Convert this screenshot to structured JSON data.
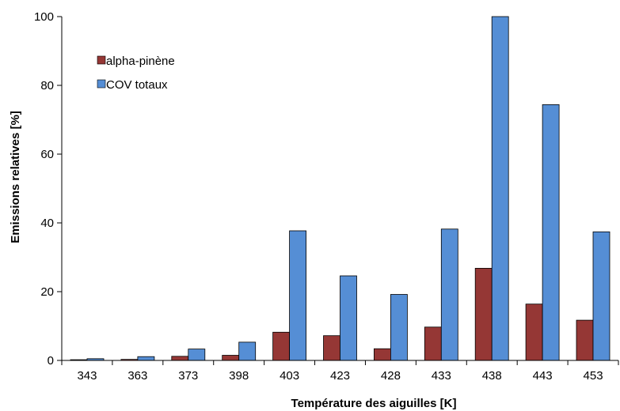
{
  "chart_data": {
    "type": "bar",
    "title": "",
    "xlabel": "Température des aiguilles [K]",
    "ylabel": "Emissions relatives [%]",
    "ylim": [
      0,
      100
    ],
    "yticks": [
      0,
      20,
      40,
      60,
      80,
      100
    ],
    "categories": [
      "343",
      "363",
      "373",
      "398",
      "403",
      "423",
      "428",
      "433",
      "438",
      "443",
      "453"
    ],
    "series": [
      {
        "name": "alpha-pinène",
        "color": "#953735",
        "values": [
          0.2,
          0.3,
          1.2,
          1.5,
          8.2,
          7.2,
          3.4,
          9.7,
          26.8,
          16.4,
          11.7
        ]
      },
      {
        "name": "COV totaux",
        "color": "#558ED5",
        "values": [
          0.5,
          1.1,
          3.3,
          5.3,
          37.7,
          24.6,
          19.2,
          38.2,
          100.0,
          74.4,
          37.4
        ]
      }
    ],
    "legend": "top-left",
    "grid": false
  }
}
